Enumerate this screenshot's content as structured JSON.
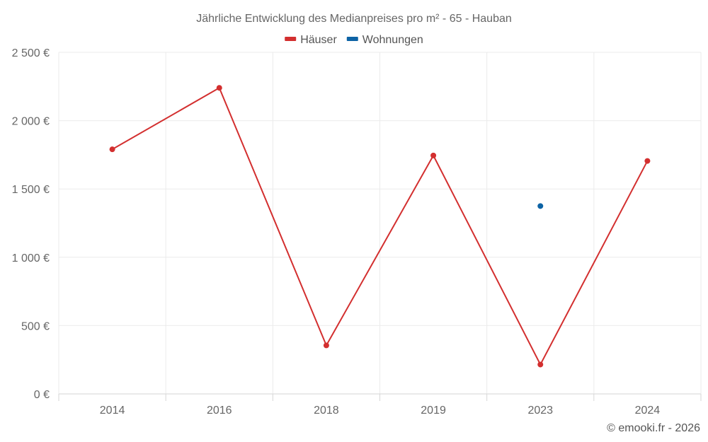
{
  "chart_data": {
    "type": "line",
    "title": "Jährliche Entwicklung des Medianpreises pro m² - 65 - Hauban",
    "categories": [
      "2014",
      "2016",
      "2018",
      "2019",
      "2023",
      "2024"
    ],
    "series": [
      {
        "name": "Häuser",
        "color": "#d32f2f",
        "values": [
          1790,
          2240,
          355,
          1745,
          215,
          1705
        ]
      },
      {
        "name": "Wohnungen",
        "color": "#0d63a5",
        "values": [
          null,
          null,
          null,
          null,
          1375,
          null
        ]
      }
    ],
    "y_ticks": [
      {
        "value": 0,
        "label": "0 €"
      },
      {
        "value": 500,
        "label": "500 €"
      },
      {
        "value": 1000,
        "label": "1 000 €"
      },
      {
        "value": 1500,
        "label": "1 500 €"
      },
      {
        "value": 2000,
        "label": "2 000 €"
      },
      {
        "value": 2500,
        "label": "2 500 €"
      }
    ],
    "ylim": [
      0,
      2500
    ],
    "grid": true,
    "legend_position": "top-center",
    "credit": "© emooki.fr - 2026"
  }
}
